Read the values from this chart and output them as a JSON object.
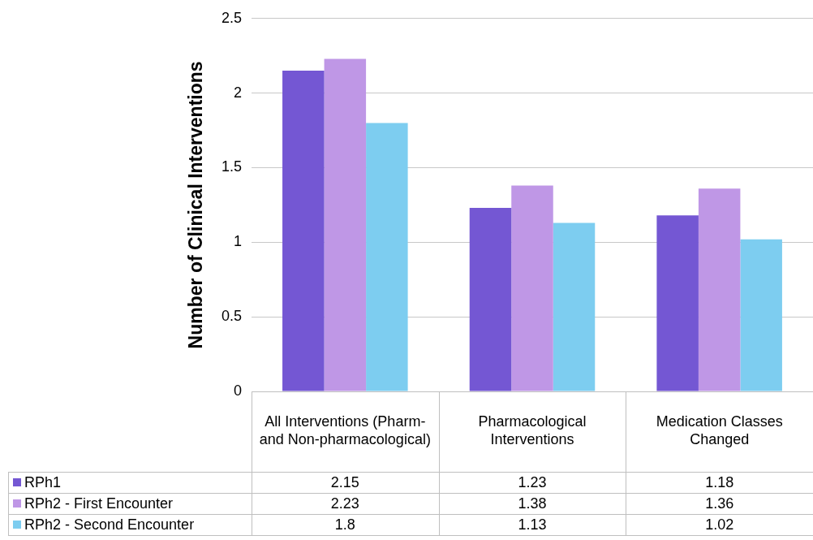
{
  "chart_data": {
    "type": "bar",
    "ylabel": "Number of Clinical Interventions",
    "categories": [
      "All Interventions (Pharm- and Non-pharmacological)",
      "Pharmacological Interventions",
      "Medication Classes Changed"
    ],
    "series": [
      {
        "name": "RPh1",
        "color": "#7457d3",
        "values": [
          2.15,
          1.23,
          1.18
        ]
      },
      {
        "name": "RPh2 - First Encounter",
        "color": "#bf97e6",
        "values": [
          2.23,
          1.38,
          1.36
        ]
      },
      {
        "name": "RPh2 - Second Encounter",
        "color": "#7dcdf0",
        "values": [
          1.8,
          1.13,
          1.02
        ]
      }
    ],
    "ylim": [
      0,
      2.5
    ],
    "yticks": [
      0,
      0.5,
      1,
      1.5,
      2,
      2.5
    ],
    "grid": "y",
    "data_labels": true,
    "legend": "bottom left"
  }
}
